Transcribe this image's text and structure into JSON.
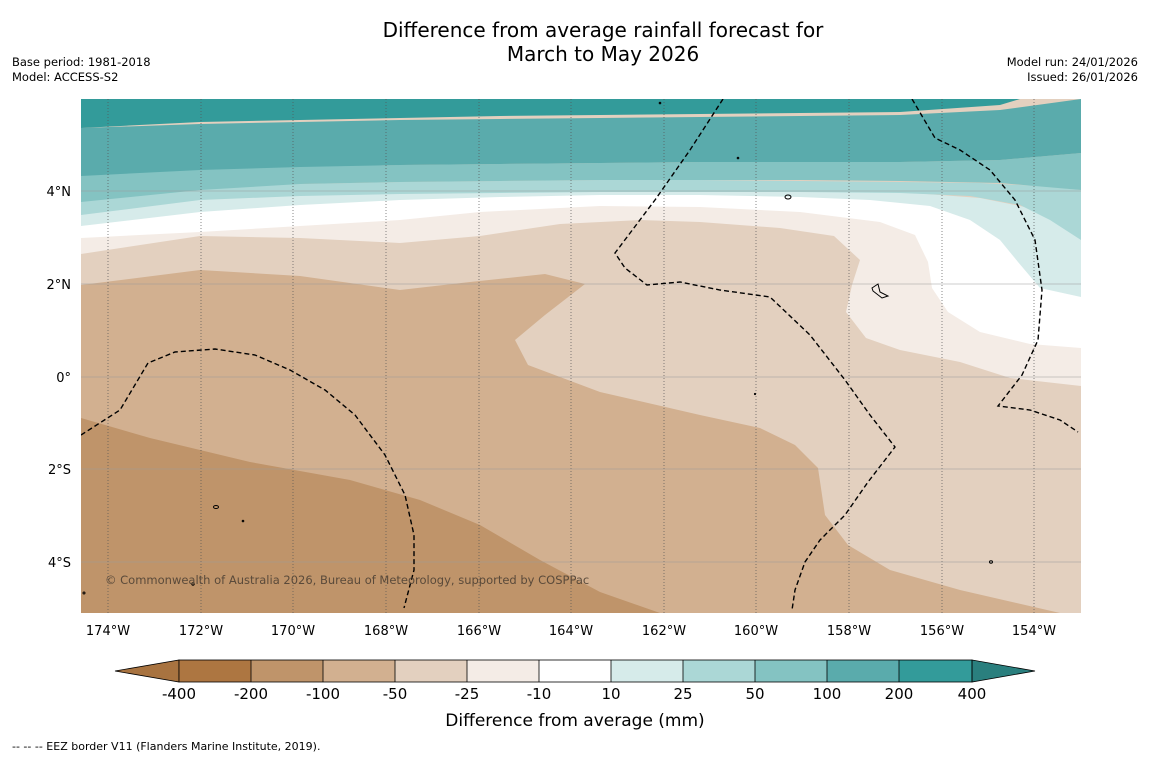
{
  "title": {
    "line1": "Difference from average rainfall forecast for",
    "line2": "March to May 2026"
  },
  "meta": {
    "base_period": "Base period: 1981-2018",
    "model": "Model: ACCESS-S2",
    "model_run": "Model run: 24/01/2026",
    "issued": "Issued: 26/01/2026"
  },
  "map": {
    "copyright": "© Commonwealth of Australia 2026, Bureau of Meteorology, supported by COSPPac",
    "lon_labels": [
      "174°W",
      "172°W",
      "170°W",
      "168°W",
      "166°W",
      "164°W",
      "162°W",
      "160°W",
      "158°W",
      "156°W",
      "154°W"
    ],
    "lat_labels": [
      "4°N",
      "2°N",
      "0°",
      "2°S",
      "4°S"
    ]
  },
  "legend": {
    "ticks": [
      "-400",
      "-200",
      "-100",
      "-50",
      "-25",
      "-10",
      "10",
      "25",
      "50",
      "100",
      "200",
      "400"
    ],
    "label": "Difference from average (mm)",
    "colors": [
      "#a87340",
      "#bf946a",
      "#d2b090",
      "#e3d0bf",
      "#f4ece6",
      "#ffffff",
      "#d6ebea",
      "#abd7d6",
      "#84c3c2",
      "#5aabac",
      "#339b9a",
      "#2a7f7e"
    ],
    "colors_note": "first and last are the arrow extensions"
  },
  "footnote": "--  --  -- EEZ border V11 (Flanders Marine Institute, 2019)."
}
